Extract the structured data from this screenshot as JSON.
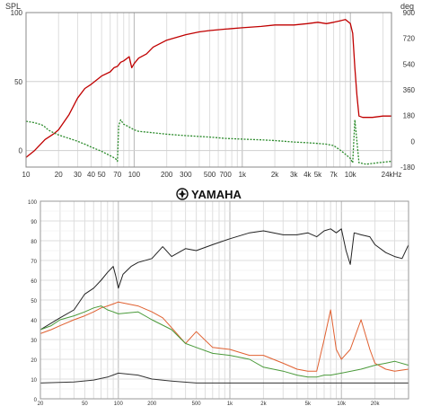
{
  "chart_data": [
    {
      "type": "line",
      "ylabel": "SPL",
      "y2label": "deg",
      "xscale": "log",
      "xlim": [
        10,
        24000
      ],
      "ylim": [
        -12,
        100
      ],
      "y2lim": [
        -180,
        900
      ],
      "x_ticks": [
        10,
        20,
        30,
        40,
        50,
        70,
        100,
        200,
        300,
        500,
        700,
        1000,
        2000,
        3000,
        4000,
        5000,
        7000,
        10000,
        24000
      ],
      "x_tick_labels": [
        "10",
        "20",
        "30",
        "40",
        "50",
        "70",
        "100",
        "200",
        "300",
        "500",
        "700",
        "1k",
        "2k",
        "3k",
        "4k",
        "5k",
        "7k",
        "10k",
        "24kHz"
      ],
      "y_ticks": [
        0,
        50,
        100
      ],
      "y2_ticks": [
        -180,
        0,
        180,
        360,
        540,
        720,
        900
      ],
      "grid": true,
      "series": [
        {
          "color": "#c00000",
          "axis": "left",
          "x": [
            10,
            12,
            15,
            18,
            20,
            25,
            30,
            35,
            40,
            50,
            60,
            65,
            70,
            75,
            80,
            90,
            95,
            100,
            110,
            130,
            150,
            200,
            300,
            400,
            500,
            700,
            1000,
            1500,
            2000,
            3000,
            4000,
            5000,
            6000,
            7000,
            8000,
            9000,
            10000,
            10500,
            11000,
            11500,
            12000,
            13000,
            16000,
            20000,
            24000
          ],
          "y": [
            -5,
            0,
            8,
            12,
            15,
            26,
            38,
            45,
            48,
            54,
            57,
            60,
            61,
            64,
            65,
            68,
            60,
            63,
            67,
            70,
            75,
            80,
            84,
            86,
            87,
            88,
            89,
            90,
            91,
            91,
            92,
            93,
            92,
            93,
            94,
            95,
            92,
            85,
            60,
            40,
            25,
            24,
            24,
            25,
            25
          ]
        },
        {
          "color": "#2a8a2a",
          "axis": "right",
          "x": [
            10,
            12,
            14,
            15,
            16,
            18,
            20,
            25,
            30,
            35,
            40,
            50,
            60,
            67,
            70,
            72,
            75,
            80,
            90,
            95,
            100,
            110,
            150,
            200,
            300,
            500,
            700,
            1000,
            1500,
            2000,
            3000,
            4000,
            5000,
            6000,
            7000,
            8000,
            9000,
            10000,
            10500,
            11000,
            12000,
            14000,
            18000,
            24000
          ],
          "y": [
            140,
            130,
            115,
            100,
            80,
            60,
            45,
            20,
            0,
            -20,
            -40,
            -70,
            -100,
            -120,
            -140,
            110,
            150,
            120,
            100,
            90,
            80,
            70,
            60,
            50,
            40,
            30,
            20,
            15,
            10,
            5,
            -5,
            -10,
            -15,
            -20,
            -30,
            -60,
            -90,
            -120,
            -150,
            150,
            -150,
            -160,
            -150,
            -140
          ]
        }
      ]
    },
    {
      "type": "line",
      "title": "YAMAHA",
      "xscale": "log",
      "xlim": [
        20,
        40000
      ],
      "ylim": [
        0,
        100
      ],
      "x_ticks": [
        20,
        50,
        100,
        200,
        500,
        1000,
        2000,
        5000,
        10000,
        20000
      ],
      "x_tick_labels": [
        "20",
        "50",
        "100",
        "200",
        "500",
        "1k",
        "2k",
        "5k",
        "10k",
        "20k"
      ],
      "y_ticks": [
        0,
        10,
        20,
        30,
        40,
        50,
        60,
        70,
        80,
        90,
        100
      ],
      "grid": true,
      "series": [
        {
          "color": "#222222",
          "x": [
            20,
            30,
            40,
            50,
            60,
            70,
            80,
            90,
            95,
            100,
            110,
            130,
            150,
            200,
            250,
            300,
            400,
            500,
            700,
            1000,
            1500,
            2000,
            3000,
            4000,
            5000,
            6000,
            7000,
            8000,
            9000,
            10000,
            11000,
            12000,
            13000,
            15000,
            18000,
            20000,
            25000,
            30000,
            35000,
            40000
          ],
          "y": [
            35,
            41,
            45,
            53,
            56,
            60,
            64,
            67,
            62,
            56,
            63,
            67,
            69,
            71,
            77,
            72,
            76,
            75,
            78,
            81,
            84,
            85,
            83,
            83,
            84,
            82,
            85,
            86,
            84,
            86,
            75,
            68,
            84,
            83,
            82,
            78,
            74,
            72,
            71,
            78
          ]
        },
        {
          "color": "#e06030",
          "x": [
            20,
            25,
            30,
            40,
            50,
            60,
            70,
            80,
            90,
            100,
            150,
            200,
            250,
            300,
            400,
            500,
            700,
            1000,
            1500,
            2000,
            3000,
            4000,
            5000,
            6000,
            7000,
            8000,
            9000,
            10000,
            12000,
            15000,
            18000,
            20000,
            25000,
            30000,
            40000
          ],
          "y": [
            33,
            35,
            37,
            40,
            42,
            44,
            46,
            47,
            48,
            49,
            47,
            44,
            41,
            36,
            28,
            34,
            26,
            25,
            22,
            22,
            18,
            15,
            14,
            14,
            30,
            45,
            25,
            20,
            25,
            40,
            25,
            18,
            15,
            14,
            15
          ]
        },
        {
          "color": "#4a9a3a",
          "x": [
            20,
            25,
            30,
            40,
            50,
            60,
            70,
            80,
            90,
            100,
            150,
            200,
            300,
            400,
            500,
            700,
            1000,
            1500,
            2000,
            3000,
            4000,
            5000,
            6000,
            7000,
            8000,
            10000,
            15000,
            20000,
            25000,
            30000,
            40000
          ],
          "y": [
            35,
            37,
            40,
            42,
            44,
            46,
            47,
            45,
            44,
            43,
            44,
            40,
            35,
            28,
            26,
            23,
            22,
            20,
            16,
            14,
            12,
            11,
            11,
            12,
            12,
            13,
            15,
            17,
            18,
            19,
            17
          ]
        },
        {
          "color": "#333333",
          "x": [
            20,
            40,
            60,
            80,
            100,
            150,
            200,
            300,
            500,
            1000,
            2000,
            5000,
            10000,
            20000,
            40000
          ],
          "y": [
            8,
            8.5,
            9.5,
            11,
            13,
            12,
            10,
            9,
            8,
            8,
            8,
            8,
            8,
            8,
            8
          ]
        }
      ]
    }
  ]
}
